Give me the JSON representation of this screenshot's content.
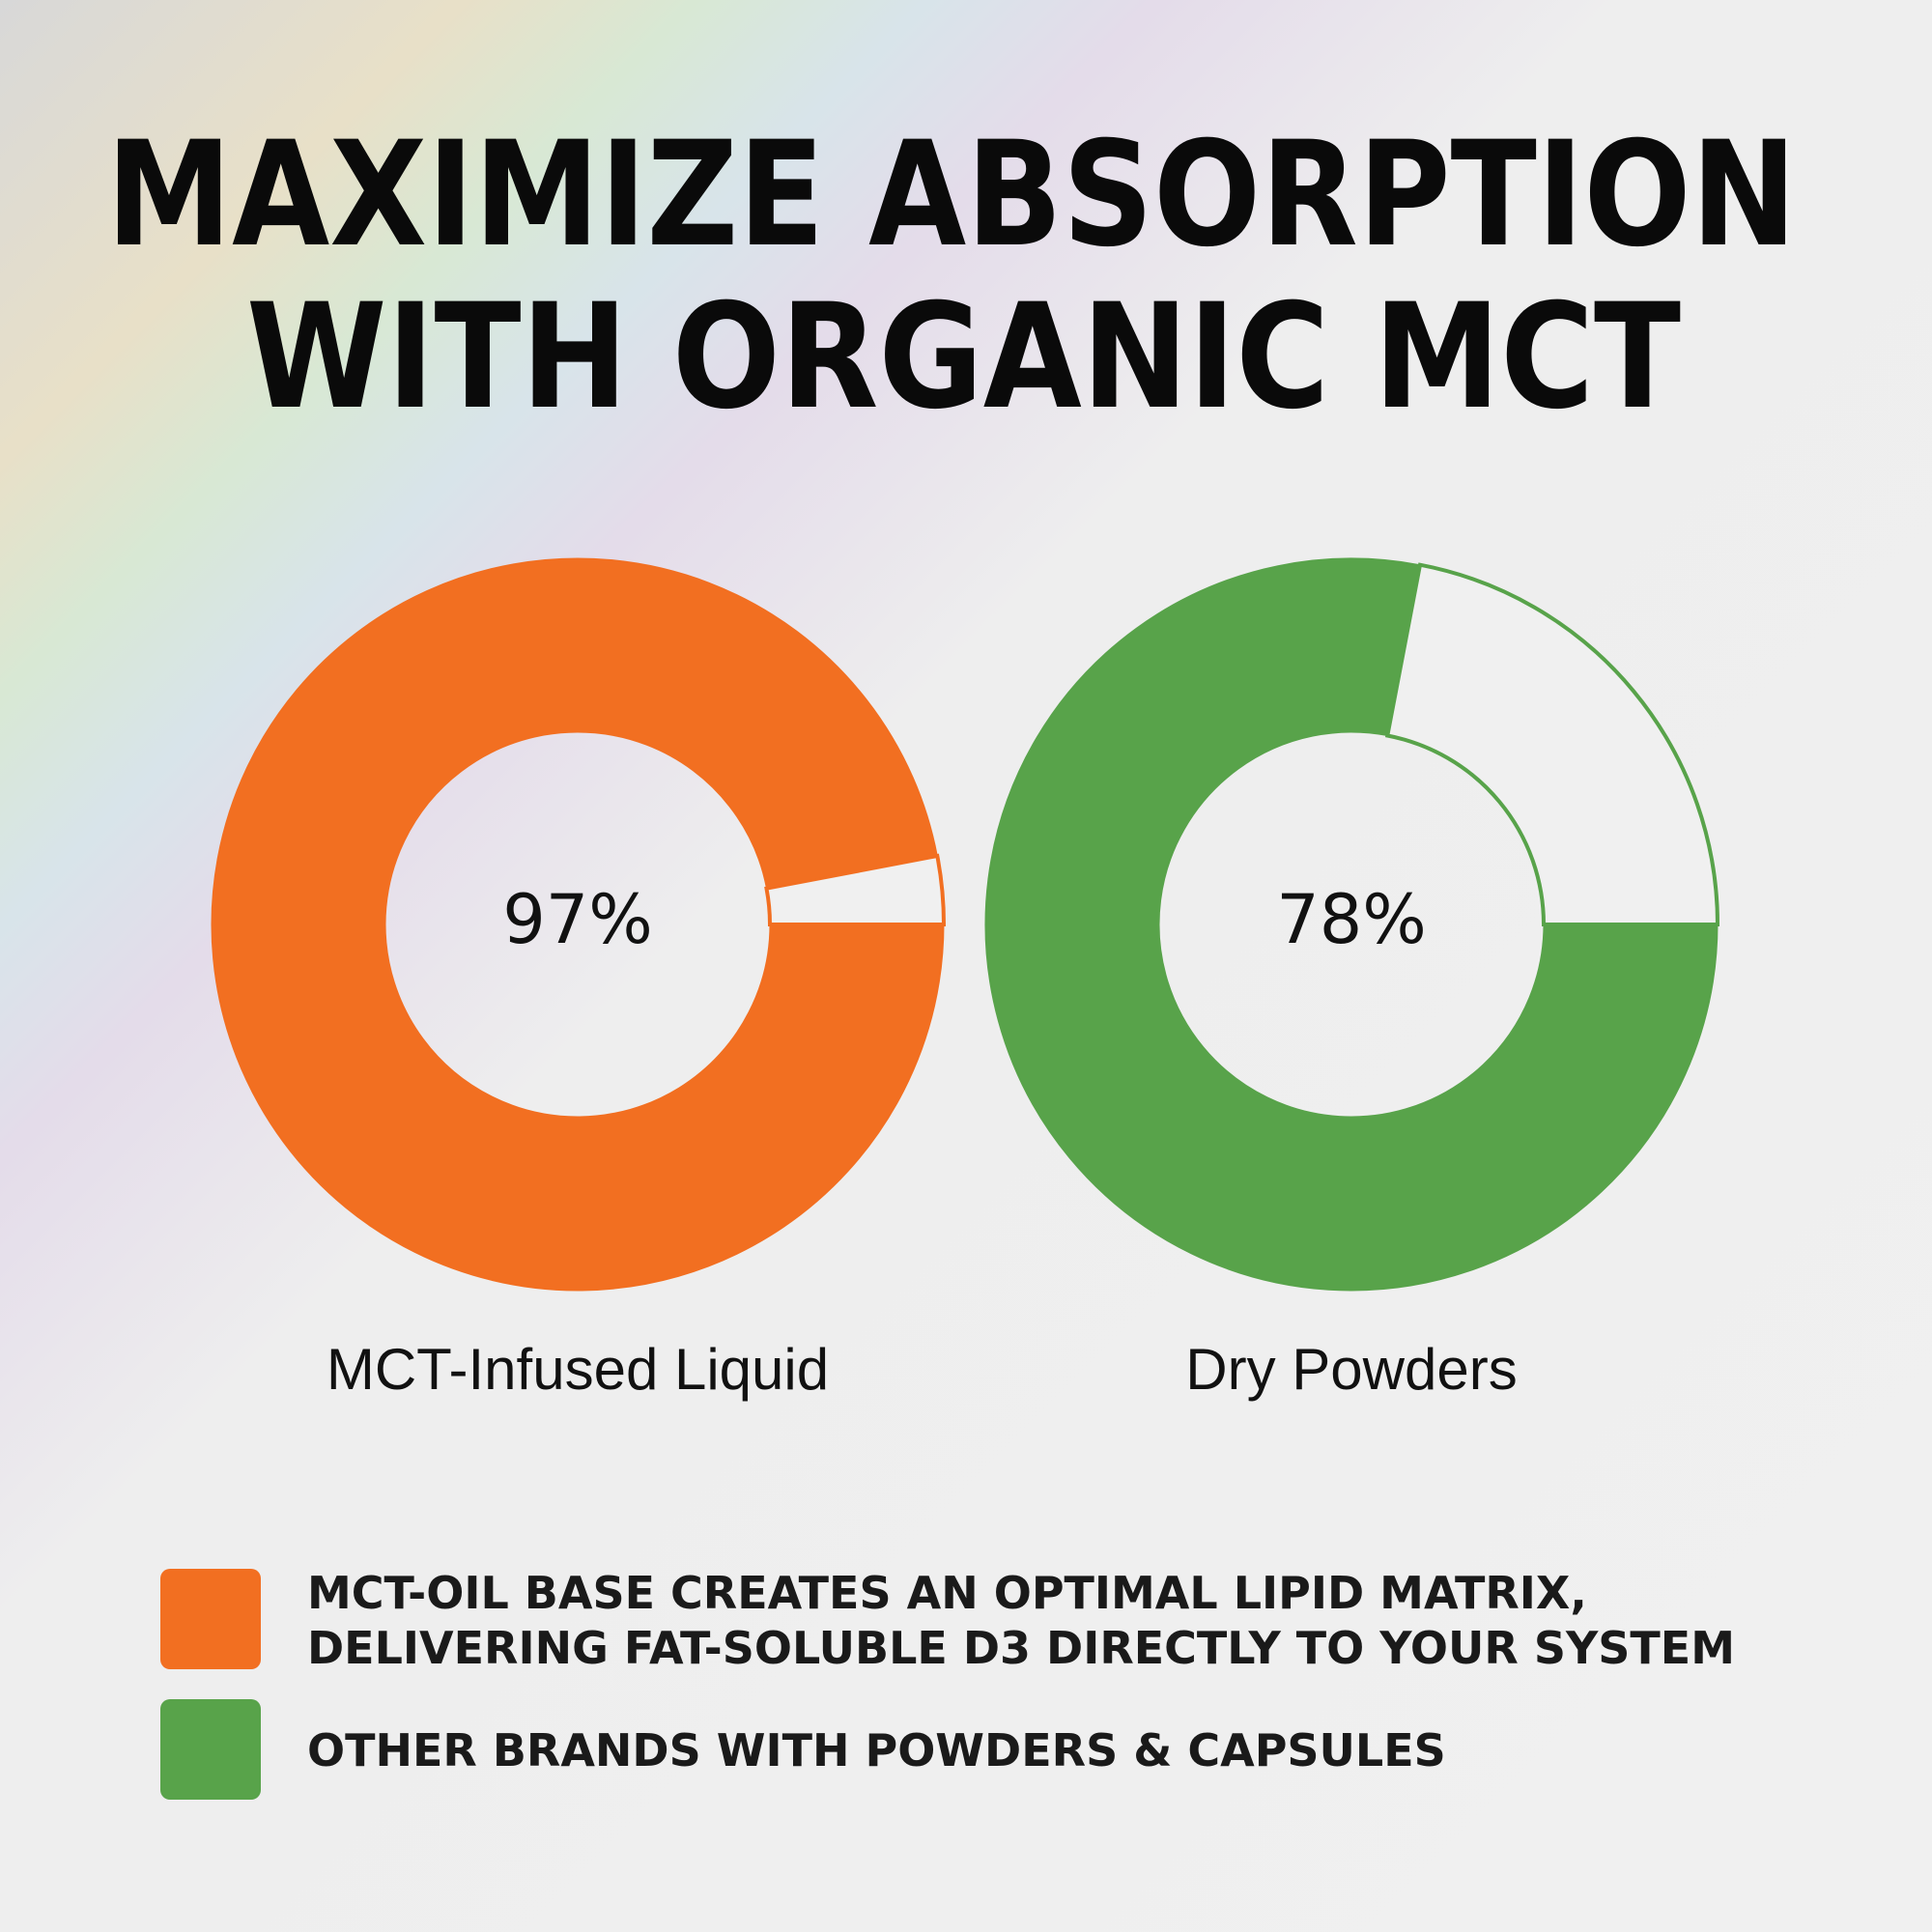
{
  "title": [
    "MAXIMIZE ABSORPTION",
    "WITH ORGANIC MCT"
  ],
  "chart_data": [
    {
      "type": "donut",
      "title": "MCT-Infused Liquid",
      "values": [
        97
      ],
      "value_labels": [
        "97%"
      ],
      "color": "#f26f21"
    },
    {
      "type": "donut",
      "title": "Dry Powders",
      "values": [
        78
      ],
      "value_labels": [
        "78%"
      ],
      "color": "#58a34a"
    }
  ],
  "legend": [
    {
      "color": "#f26f21",
      "lines": [
        "MCT-OIL BASE CREATES AN OPTIMAL LIPID MATRIX,",
        "DELIVERING FAT-SOLUBLE D3 DIRECTLY TO YOUR SYSTEM"
      ]
    },
    {
      "color": "#58a34a",
      "lines": [
        "OTHER BRANDS WITH POWDERS & CAPSULES"
      ]
    }
  ]
}
